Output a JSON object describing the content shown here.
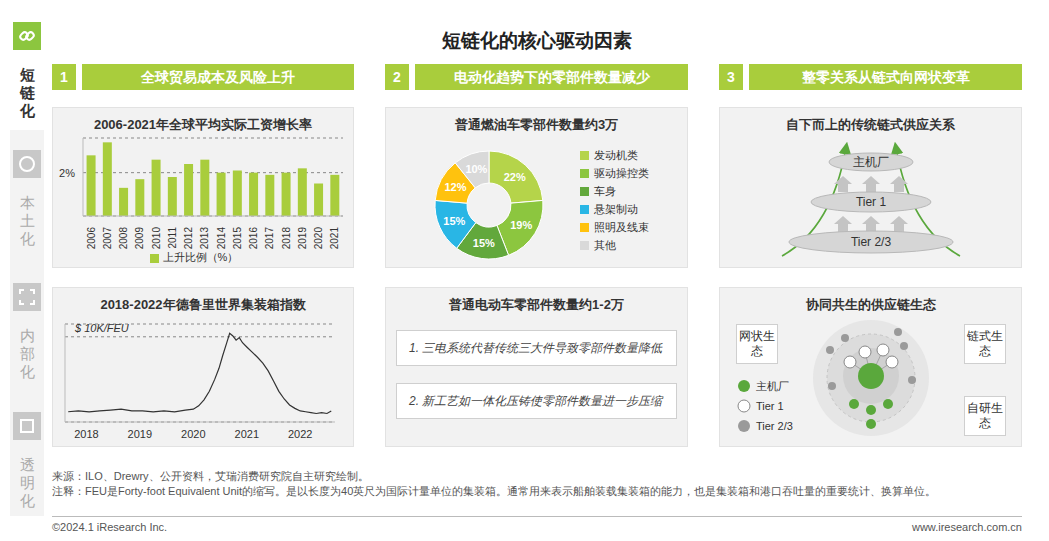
{
  "title": "短链化的核心驱动因素",
  "sidebar": [
    {
      "label": "短链化",
      "active": true
    },
    {
      "label": "本土化",
      "active": false
    },
    {
      "label": "内部化",
      "active": false
    },
    {
      "label": "透明化",
      "active": false
    }
  ],
  "sections": [
    {
      "number": "1",
      "heading": "全球贸易成本及风险上升"
    },
    {
      "number": "2",
      "heading": "电动化趋势下的零部件数量减少"
    },
    {
      "number": "3",
      "heading": "整零关系从链式向网状变革"
    }
  ],
  "chart_data": [
    {
      "type": "bar",
      "title": "2006-2021年全球平均实际工资增长率",
      "categories": [
        "2006",
        "2007",
        "2008",
        "2009",
        "2010",
        "2011",
        "2012",
        "2013",
        "2014",
        "2015",
        "2016",
        "2017",
        "2018",
        "2019",
        "2020",
        "2021"
      ],
      "series": [
        {
          "name": "上升比例（%）",
          "color": "#a9cd3c",
          "values": [
            2.8,
            3.4,
            1.3,
            1.7,
            2.6,
            1.8,
            2.4,
            2.6,
            2.0,
            2.1,
            2.0,
            1.9,
            2.0,
            2.2,
            1.5,
            1.9
          ]
        }
      ],
      "ylim": [
        0,
        3.6
      ],
      "yticks": [
        {
          "value": 2,
          "label": "2%"
        }
      ],
      "grid": true,
      "legend": "bottom"
    },
    {
      "type": "line",
      "title": "2018-2022年德鲁里世界集装箱指数",
      "x": [
        2017.66,
        2017.85,
        2018.05,
        2018.25,
        2018.45,
        2018.65,
        2018.85,
        2019.05,
        2019.25,
        2019.45,
        2019.65,
        2019.85,
        2020.0,
        2020.1,
        2020.2,
        2020.3,
        2020.4,
        2020.48,
        2020.55,
        2020.62,
        2020.68,
        2020.74,
        2020.8,
        2020.86,
        2020.92,
        2021.0,
        2021.1,
        2021.2,
        2021.3,
        2021.4,
        2021.5,
        2021.6,
        2021.7,
        2021.8,
        2021.9,
        2022.0,
        2022.1,
        2022.2,
        2022.3,
        2022.4,
        2022.5,
        2022.58
      ],
      "values": [
        1.2,
        1.3,
        1.2,
        1.3,
        1.4,
        1.5,
        1.3,
        1.3,
        1.2,
        1.3,
        1.2,
        1.4,
        1.5,
        1.9,
        2.6,
        3.6,
        5.0,
        6.3,
        7.8,
        9.2,
        10.4,
        10.1,
        9.6,
        9.9,
        9.3,
        8.8,
        8.2,
        7.6,
        6.9,
        6.0,
        4.8,
        3.6,
        2.7,
        2.0,
        1.6,
        1.3,
        1.2,
        1.1,
        1.0,
        1.1,
        1.0,
        1.3
      ],
      "color": "#333333",
      "xlim": [
        2017.6,
        2022.65
      ],
      "xticks": [
        2018,
        2019,
        2020,
        2021,
        2022
      ],
      "ylim": [
        0,
        11.5
      ],
      "yticks": [
        {
          "value": 10,
          "label": "$ 10K/FEU"
        }
      ],
      "grid": true
    },
    {
      "type": "pie",
      "title": "普通燃油车零部件数量约3万",
      "categories": [
        "发动机类",
        "驱动操控类",
        "车身",
        "悬架制动",
        "照明及线束",
        "其他"
      ],
      "values": [
        22,
        19,
        15,
        15,
        12,
        10
      ],
      "value_labels": [
        "22%",
        "19%",
        "15%",
        "15%",
        "12%",
        "10%"
      ],
      "colors": [
        "#b5d44a",
        "#8cc63f",
        "#62a83c",
        "#29b6e5",
        "#ffc20e",
        "#d9d9d9"
      ],
      "data_labels": true,
      "legend": "right"
    }
  ],
  "ev_panel": {
    "title": "普通电动车零部件数量约1-2万",
    "points": [
      "1. 三电系统代替传统三大件导致零部件数量降低",
      "2. 新工艺如一体化压铸使零部件数量进一步压缩"
    ]
  },
  "chain_panel": {
    "title": "自下而上的传统链式供应关系",
    "tiers": [
      "主机厂",
      "Tier 1",
      "Tier 2/3"
    ]
  },
  "ecosystem_panel": {
    "title": "协同共生的供应链生态",
    "labels": [
      "网状生态",
      "链式生态",
      "自研生态"
    ],
    "key_items": [
      "主机厂",
      "Tier 1",
      "Tier 2/3"
    ]
  },
  "footer": {
    "source": "来源：ILO、Drewry、公开资料，艾瑞消费研究院自主研究绘制。",
    "note": "注释：FEU是Forty-foot Equivalent Unit的缩写。是以长度为40英尺为国际计量单位的集装箱。通常用来表示船舶装载集装箱的能力，也是集装箱和港口吞吐量的重要统计、换算单位。",
    "copyright": "©2024.1 iResearch Inc.",
    "url": "www.iresearch.com.cn"
  }
}
